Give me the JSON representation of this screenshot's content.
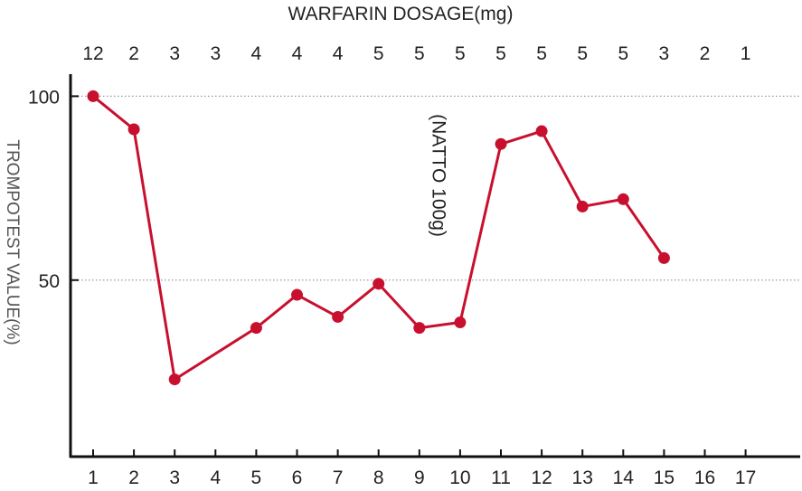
{
  "chart_data": {
    "type": "line",
    "top_axis_title": "WARFARIN DOSAGE(mg)",
    "ylabel": "TROMPOTEST VALUE(%)",
    "x": [
      "1",
      "2",
      "3",
      "4",
      "5",
      "6",
      "7",
      "8",
      "9",
      "10",
      "11",
      "12",
      "13",
      "14",
      "15",
      "16",
      "17"
    ],
    "top_labels": [
      "12",
      "2",
      "3",
      "3",
      "4",
      "4",
      "4",
      "5",
      "5",
      "5",
      "5",
      "5",
      "5",
      "5",
      "3",
      "2",
      "1"
    ],
    "yticks": [
      50,
      100
    ],
    "ylim": [
      2,
      106
    ],
    "grid": "dotted lines at 50 and 100",
    "series": [
      {
        "values": [
          100,
          91,
          23,
          null,
          37,
          46,
          40,
          49,
          37,
          38.5,
          87,
          90.5,
          70,
          72,
          56,
          null,
          null
        ]
      }
    ],
    "annotation": {
      "text": "(NATTO 100g)",
      "at_x": "9.5",
      "orientation": "vertical"
    },
    "colors": {
      "line": "#c8102e",
      "axis": "#111111",
      "grid": "#999999"
    }
  }
}
